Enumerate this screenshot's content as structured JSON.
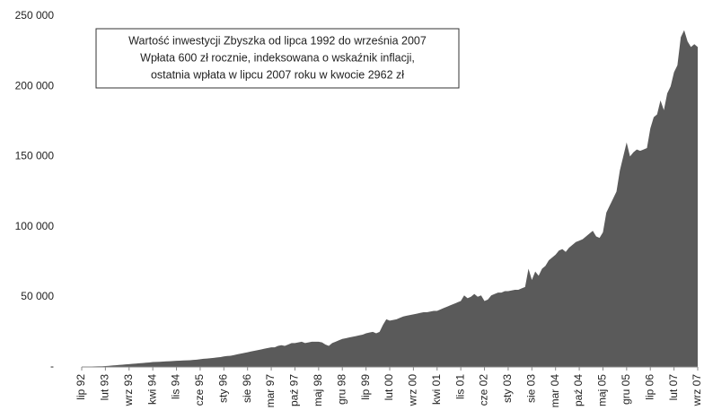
{
  "chart_data": {
    "type": "area",
    "annotation": [
      "Wartość inwestycji Zbyszka od lipca 1992 do września 2007",
      "Wpłata 600 zł rocznie, indeksowana o wskaźnik inflacji,",
      "ostatnia wpłata w lipcu 2007 roku w kwocie 2962 zł"
    ],
    "color": "#5a5a5a",
    "ylim": [
      0,
      250000
    ],
    "yticks": [
      {
        "value": 0,
        "label": "-"
      },
      {
        "value": 50000,
        "label": "50 000"
      },
      {
        "value": 100000,
        "label": "100 000"
      },
      {
        "value": 150000,
        "label": "150 000"
      },
      {
        "value": 200000,
        "label": "200 000"
      },
      {
        "value": 250000,
        "label": "250 000"
      }
    ],
    "categories": [
      "lip 92",
      null,
      null,
      null,
      null,
      null,
      null,
      "lut 93",
      null,
      null,
      null,
      null,
      null,
      null,
      "wrz 93",
      null,
      null,
      null,
      null,
      null,
      null,
      "kwi 94",
      null,
      null,
      null,
      null,
      null,
      null,
      "lis 94",
      null,
      null,
      null,
      null,
      null,
      null,
      "cze 95",
      null,
      null,
      null,
      null,
      null,
      null,
      "sty 96",
      null,
      null,
      null,
      null,
      null,
      null,
      "sie 96",
      null,
      null,
      null,
      null,
      null,
      null,
      "mar 97",
      null,
      null,
      null,
      null,
      null,
      null,
      "paź 97",
      null,
      null,
      null,
      null,
      null,
      null,
      "maj 98",
      null,
      null,
      null,
      null,
      null,
      null,
      "gru 98",
      null,
      null,
      null,
      null,
      null,
      null,
      "lip 99",
      null,
      null,
      null,
      null,
      null,
      null,
      "lut 00",
      null,
      null,
      null,
      null,
      null,
      null,
      "wrz 00",
      null,
      null,
      null,
      null,
      null,
      null,
      "kwi 01",
      null,
      null,
      null,
      null,
      null,
      null,
      "lis 01",
      null,
      null,
      null,
      null,
      null,
      null,
      "cze 02",
      null,
      null,
      null,
      null,
      null,
      null,
      "sty 03",
      null,
      null,
      null,
      null,
      null,
      null,
      "sie 03",
      null,
      null,
      null,
      null,
      null,
      null,
      "mar 04",
      null,
      null,
      null,
      null,
      null,
      null,
      "paź 04",
      null,
      null,
      null,
      null,
      null,
      null,
      "maj 05",
      null,
      null,
      null,
      null,
      null,
      null,
      "gru 05",
      null,
      null,
      null,
      null,
      null,
      null,
      "lip 06",
      null,
      null,
      null,
      null,
      null,
      null,
      "lut 07",
      null,
      null,
      null,
      null,
      null,
      null,
      "wrz 07"
    ],
    "values": [
      0,
      100,
      200,
      300,
      400,
      500,
      500,
      600,
      800,
      1000,
      1200,
      1400,
      1600,
      1800,
      2000,
      2200,
      2400,
      2600,
      2800,
      3000,
      3200,
      3500,
      3600,
      3700,
      3800,
      4000,
      4100,
      4200,
      4400,
      4500,
      4600,
      4700,
      4800,
      5000,
      5200,
      5500,
      5800,
      6000,
      6200,
      6500,
      6800,
      7000,
      7500,
      7800,
      8000,
      8500,
      9000,
      9500,
      10000,
      10500,
      11000,
      11500,
      12000,
      12500,
      13000,
      13500,
      14000,
      14000,
      15000,
      15500,
      15000,
      16000,
      17000,
      17000,
      17500,
      18000,
      17000,
      17500,
      18000,
      18000,
      18000,
      17500,
      16000,
      15000,
      17000,
      18000,
      19000,
      20000,
      20500,
      21000,
      21500,
      22000,
      22500,
      23000,
      24000,
      24500,
      25000,
      24000,
      25000,
      30000,
      34000,
      33000,
      33500,
      34000,
      35000,
      36000,
      36500,
      37000,
      37500,
      38000,
      38500,
      39000,
      39000,
      39500,
      40000,
      40000,
      41000,
      42000,
      43000,
      44000,
      45000,
      46000,
      47000,
      51000,
      49000,
      50000,
      52000,
      50000,
      51000,
      47000,
      48000,
      51000,
      52000,
      53000,
      53000,
      54000,
      54000,
      54500,
      55000,
      55000,
      56000,
      57000,
      70000,
      62000,
      68000,
      65000,
      70000,
      72000,
      76000,
      78000,
      80000,
      83000,
      84000,
      82000,
      85000,
      87000,
      89000,
      90000,
      91000,
      93000,
      95000,
      97000,
      93000,
      92000,
      96000,
      110000,
      115000,
      120000,
      125000,
      140000,
      150000,
      160000,
      150000,
      153000,
      155000,
      154000,
      155000,
      156000,
      170000,
      178000,
      180000,
      190000,
      183000,
      195000,
      200000,
      210000,
      215000,
      235000,
      240000,
      232000,
      228000,
      230000,
      228000
    ]
  }
}
